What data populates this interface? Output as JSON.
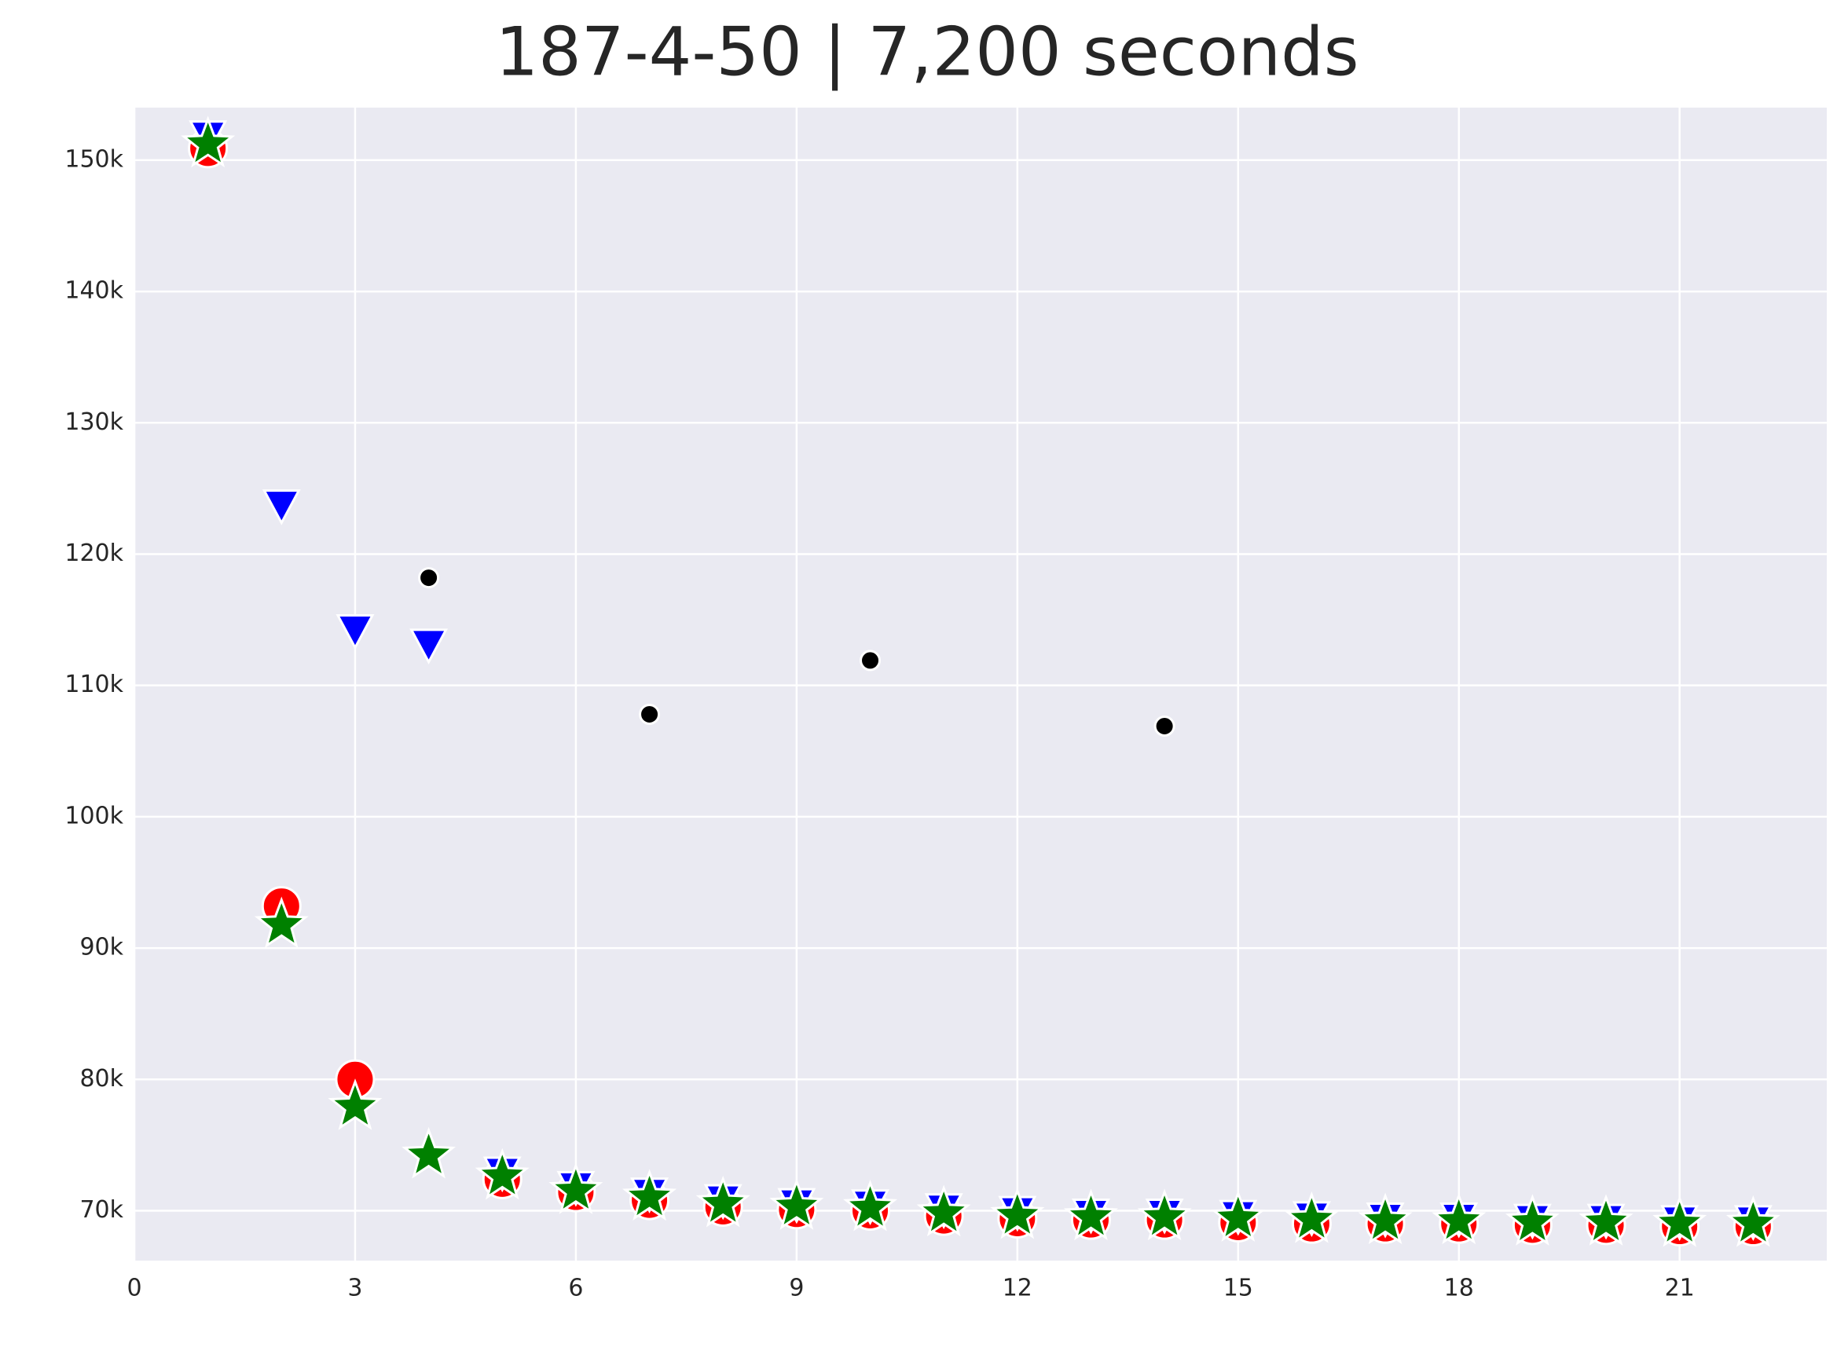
{
  "chart_data": {
    "type": "scatter",
    "title": "187-4-50 | 7,200 seconds",
    "x": [
      1,
      2,
      3,
      4,
      5,
      6,
      7,
      8,
      9,
      10,
      11,
      12,
      13,
      14,
      15,
      16,
      17,
      18,
      19,
      20,
      21,
      22
    ],
    "series": [
      {
        "color": "#ff0000",
        "marker": "circle",
        "values": [
          150900,
          93200,
          80000,
          null,
          72400,
          71400,
          70800,
          70300,
          70100,
          70000,
          69600,
          69400,
          69300,
          69300,
          69100,
          69000,
          69000,
          69000,
          68900,
          68900,
          68800,
          68800
        ]
      },
      {
        "color": "#0000ff",
        "marker": "triangle-down",
        "values": [
          151800,
          123700,
          114200,
          113100,
          72900,
          71800,
          71300,
          70800,
          70500,
          70400,
          70100,
          69900,
          69700,
          69700,
          69600,
          69500,
          69400,
          69400,
          69300,
          69300,
          69200,
          69200
        ]
      },
      {
        "color": "#000000",
        "marker": "dot",
        "values": [
          null,
          null,
          null,
          118200,
          null,
          null,
          107800,
          null,
          null,
          111900,
          null,
          null,
          null,
          106900,
          null,
          null,
          null,
          null,
          null,
          null,
          null,
          null
        ]
      },
      {
        "color": "#008000",
        "marker": "star",
        "values": [
          151200,
          91750,
          77900,
          74200,
          72600,
          71500,
          71000,
          70500,
          70300,
          70200,
          69800,
          69600,
          69500,
          69500,
          69400,
          69300,
          69200,
          69200,
          69100,
          69100,
          69000,
          69000
        ]
      }
    ],
    "xlim": [
      0,
      23
    ],
    "xticks": [
      0,
      3,
      6,
      9,
      12,
      15,
      18,
      21
    ],
    "ylim": [
      66200,
      154000
    ],
    "yticks": [
      {
        "value": 70000,
        "label": "70k"
      },
      {
        "value": 80000,
        "label": "80k"
      },
      {
        "value": 90000,
        "label": "90k"
      },
      {
        "value": 100000,
        "label": "100k"
      },
      {
        "value": 110000,
        "label": "110k"
      },
      {
        "value": 120000,
        "label": "120k"
      },
      {
        "value": 130000,
        "label": "130k"
      },
      {
        "value": 140000,
        "label": "140k"
      },
      {
        "value": 150000,
        "label": "150k"
      }
    ],
    "grid": true
  }
}
